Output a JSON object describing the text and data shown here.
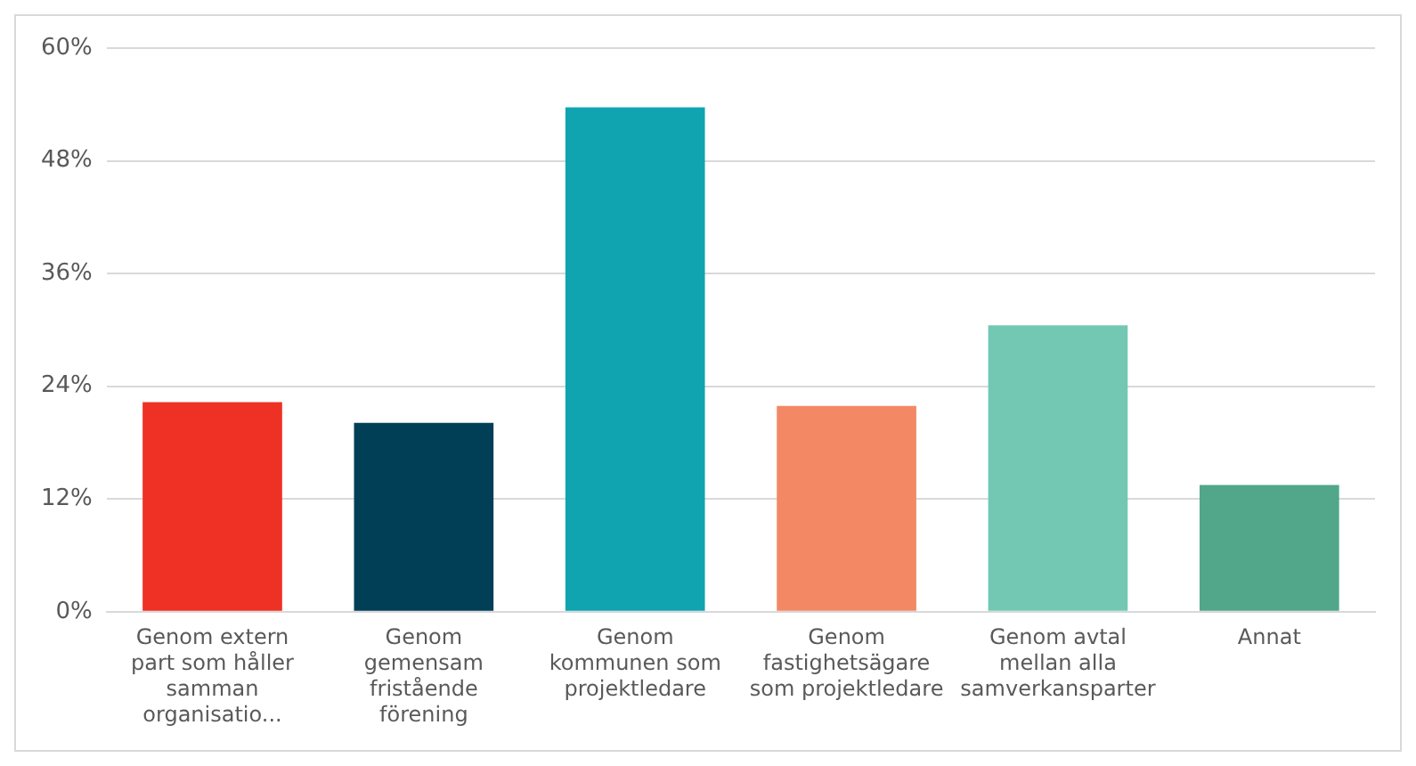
{
  "chart_data": {
    "type": "bar",
    "categories": [
      "Genom extern part som håller samman organisatio...",
      "Genom gemensam fristående förening",
      "Genom kommunen som projektledare",
      "Genom fastighetsägare som projektledare",
      "Genom avtal mellan alla samverkansparter",
      "Annat"
    ],
    "values": [
      22.3,
      20.1,
      53.7,
      21.9,
      30.5,
      13.5
    ],
    "colors": [
      "#ee3124",
      "#003f56",
      "#0fa4b0",
      "#f38865",
      "#73c8b4",
      "#52a68a"
    ],
    "ylim": [
      0,
      60
    ],
    "yticks": [
      {
        "value": 0,
        "label": "0%"
      },
      {
        "value": 12,
        "label": "12%"
      },
      {
        "value": 24,
        "label": "24%"
      },
      {
        "value": 36,
        "label": "36%"
      },
      {
        "value": 48,
        "label": "48%"
      },
      {
        "value": 60,
        "label": "60%"
      }
    ],
    "grid": "y"
  }
}
